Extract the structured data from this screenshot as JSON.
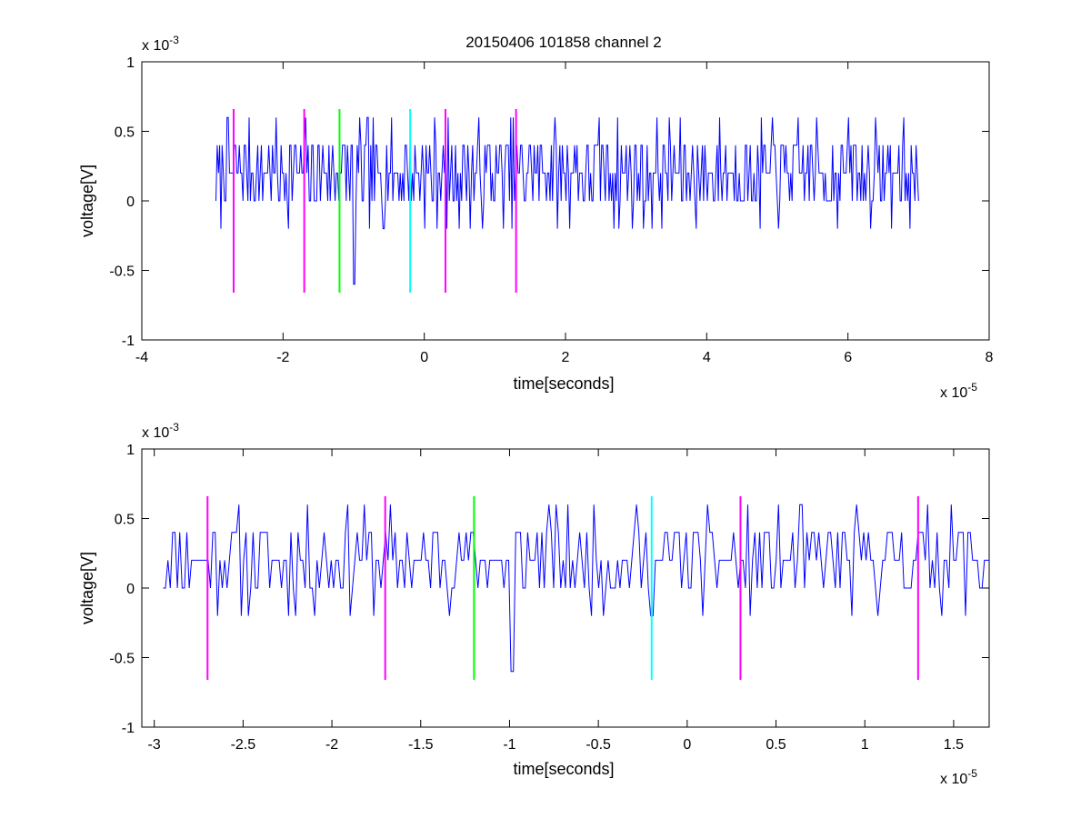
{
  "chart_data": [
    {
      "type": "line",
      "title": "20150406 101858 channel 2",
      "xlabel": "time[seconds]",
      "ylabel": "voltage[V]",
      "x_exponent_label": "x 10",
      "x_exponent": "-5",
      "y_exponent_label": "x 10",
      "y_exponent": "-3",
      "xlim": [
        -4,
        8
      ],
      "ylim": [
        -1,
        1
      ],
      "xticks": [
        -4,
        -2,
        0,
        2,
        4,
        6,
        8
      ],
      "xtick_labels": [
        "-4",
        "-2",
        "0",
        "2",
        "4",
        "6",
        "8"
      ],
      "yticks": [
        1,
        0.5,
        0,
        -0.5,
        -1
      ],
      "ytick_labels": [
        "1",
        "0.5",
        "0",
        "-0.5",
        "-1"
      ],
      "signal": {
        "color": "#0000ff",
        "x_start": -2.95,
        "x_end": 7.0,
        "levels": [
          -0.2,
          0,
          0.2,
          0.4,
          0.6
        ],
        "noise_seed": 7
      },
      "markers": [
        {
          "x": -2.7,
          "y_range": [
            -0.66,
            0.66
          ],
          "color": "#ff00ff"
        },
        {
          "x": -1.7,
          "y_range": [
            -0.66,
            0.66
          ],
          "color": "#ff00ff"
        },
        {
          "x": -1.2,
          "y_range": [
            -0.66,
            0.66
          ],
          "color": "#00ff00"
        },
        {
          "x": -0.2,
          "y_range": [
            -0.66,
            0.66
          ],
          "color": "#00ffff"
        },
        {
          "x": 0.3,
          "y_range": [
            -0.66,
            0.66
          ],
          "color": "#ff00ff"
        },
        {
          "x": 1.3,
          "y_range": [
            -0.66,
            0.66
          ],
          "color": "#ff00ff"
        }
      ]
    },
    {
      "type": "line",
      "xlabel": "time[seconds]",
      "ylabel": "voltage[V]",
      "x_exponent_label": "x 10",
      "x_exponent": "-5",
      "y_exponent_label": "x 10",
      "y_exponent": "-3",
      "xlim": [
        -3.07,
        1.7
      ],
      "ylim": [
        -1,
        1
      ],
      "xticks": [
        -3,
        -2.5,
        -2,
        -1.5,
        -1,
        -0.5,
        0,
        0.5,
        1,
        1.5
      ],
      "xtick_labels": [
        "-3",
        "-2.5",
        "-2",
        "-1.5",
        "-1",
        "-0.5",
        "0",
        "0.5",
        "1",
        "1.5"
      ],
      "yticks": [
        1,
        0.5,
        0,
        -0.5,
        -1
      ],
      "ytick_labels": [
        "1",
        "0.5",
        "0",
        "-0.5",
        "-1"
      ],
      "signal": {
        "color": "#0000ff",
        "x_start": -2.95,
        "x_end": 1.7,
        "levels": [
          -0.2,
          0,
          0.2,
          0.4,
          0.6
        ],
        "noise_seed": 11
      },
      "markers": [
        {
          "x": -2.7,
          "y_range": [
            -0.66,
            0.66
          ],
          "color": "#ff00ff"
        },
        {
          "x": -1.7,
          "y_range": [
            -0.66,
            0.66
          ],
          "color": "#ff00ff"
        },
        {
          "x": -1.2,
          "y_range": [
            -0.66,
            0.66
          ],
          "color": "#00ff00"
        },
        {
          "x": -0.2,
          "y_range": [
            -0.66,
            0.66
          ],
          "color": "#00ffff"
        },
        {
          "x": 0.3,
          "y_range": [
            -0.66,
            0.66
          ],
          "color": "#ff00ff"
        },
        {
          "x": 1.3,
          "y_range": [
            -0.66,
            0.66
          ],
          "color": "#ff00ff"
        }
      ]
    }
  ]
}
